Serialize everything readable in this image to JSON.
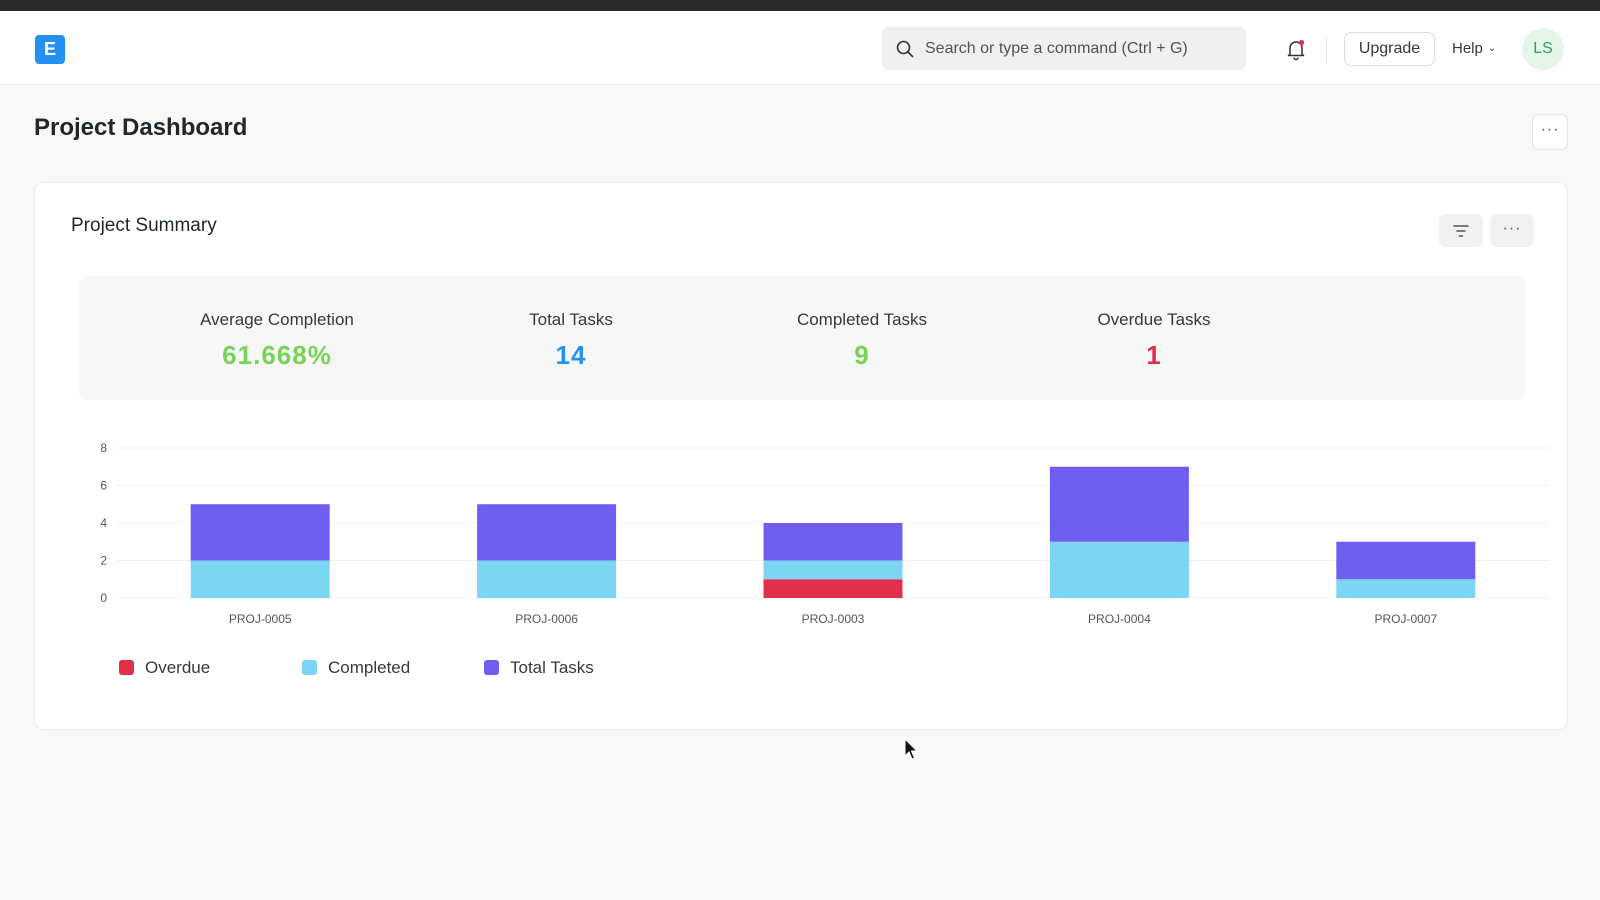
{
  "app": {
    "logo_letter": "E",
    "search_placeholder": "Search or type a command (Ctrl + G)",
    "upgrade_label": "Upgrade",
    "help_label": "Help",
    "help_chevron": "⌄",
    "avatar_initials": "LS",
    "more_glyph": "···"
  },
  "page": {
    "title": "Project Dashboard"
  },
  "card": {
    "title": "Project Summary",
    "stats": [
      {
        "label": "Average Completion",
        "value": "61.668%",
        "color": "#78d256"
      },
      {
        "label": "Total Tasks",
        "value": "14",
        "color": "#2490ef"
      },
      {
        "label": "Completed Tasks",
        "value": "9",
        "color": "#78d256"
      },
      {
        "label": "Overdue Tasks",
        "value": "1",
        "color": "#e2304a"
      }
    ]
  },
  "chart_data": {
    "type": "bar",
    "stacked": true,
    "categories": [
      "PROJ-0005",
      "PROJ-0006",
      "PROJ-0003",
      "PROJ-0004",
      "PROJ-0007"
    ],
    "series": [
      {
        "name": "Overdue",
        "color": "#e2304a",
        "values": [
          0,
          0,
          1,
          0,
          0
        ]
      },
      {
        "name": "Completed",
        "color": "#7cd6f3",
        "values": [
          2,
          2,
          1,
          3,
          1
        ]
      },
      {
        "name": "Total Tasks",
        "color": "#6f5cf0",
        "values": [
          3,
          3,
          2,
          4,
          2
        ]
      }
    ],
    "yticks": [
      0,
      2,
      4,
      6,
      8
    ],
    "ylim": [
      0,
      8
    ],
    "grid": true,
    "legend": "bottom-left"
  }
}
